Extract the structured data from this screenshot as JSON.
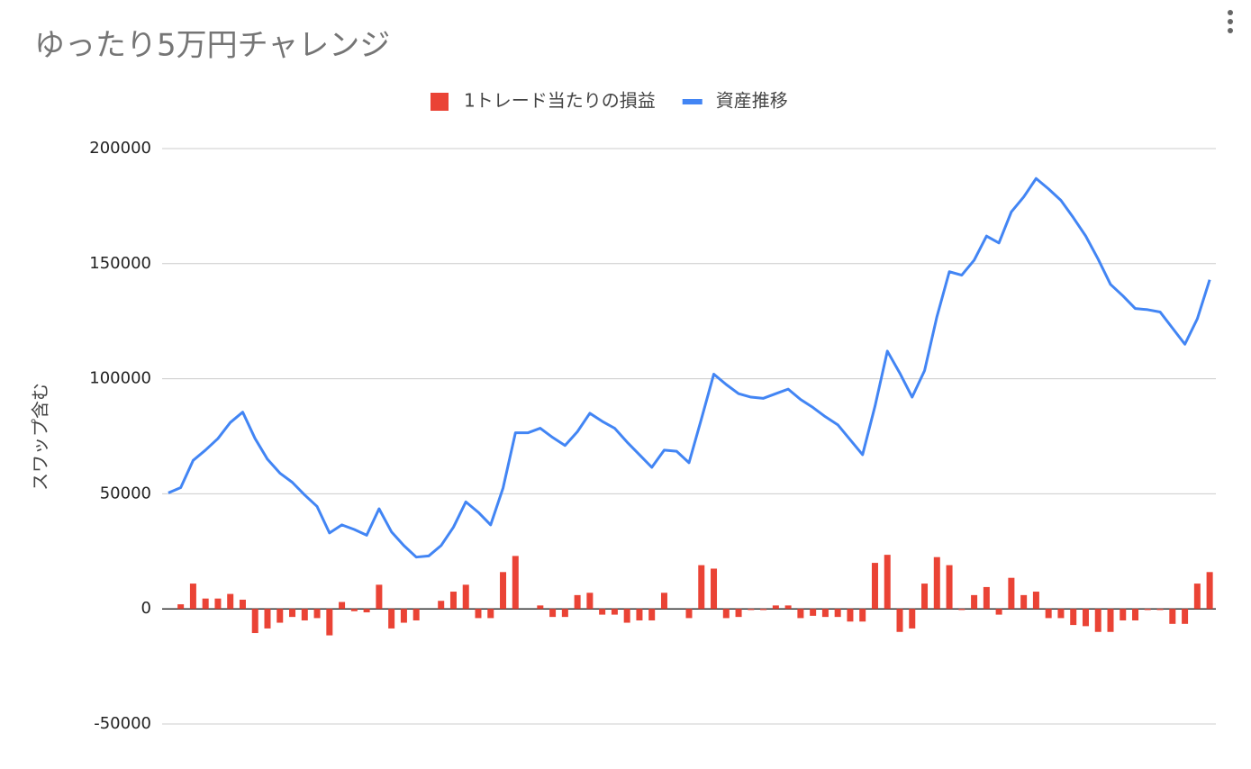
{
  "chart_data": {
    "type": "combo",
    "title": "ゆったり5万円チャレンジ",
    "y_label": "スワップ含む",
    "legend": "top",
    "categories": [
      null,
      null,
      null,
      null,
      null,
      null,
      null,
      null,
      null,
      null,
      null,
      null,
      null,
      null,
      null,
      null,
      null,
      null,
      null,
      null,
      null,
      null,
      null,
      null,
      null,
      null,
      null,
      null,
      null,
      null,
      null,
      null,
      null,
      null,
      null,
      null,
      null,
      null,
      null,
      null,
      null,
      null,
      null,
      null,
      null,
      null,
      null,
      null,
      null,
      null,
      null,
      null,
      null,
      null,
      null,
      null,
      null,
      null,
      null,
      null,
      null,
      null,
      null,
      null,
      null,
      null,
      null,
      null,
      null,
      null,
      null,
      null,
      null,
      null,
      null,
      null,
      null,
      null,
      null,
      null,
      null,
      null,
      null,
      null,
      null
    ],
    "series": [
      {
        "name": "1トレード当たりの損益",
        "kind": "bar",
        "color": "#ea4335",
        "values": [
          null,
          2000,
          11000,
          4500,
          4500,
          6500,
          4000,
          -10500,
          -8500,
          -6000,
          -3500,
          -5000,
          -4000,
          -11500,
          3000,
          -1000,
          -1500,
          10500,
          -8500,
          -6000,
          -5000,
          0,
          3500,
          7500,
          10500,
          -4000,
          -4000,
          16000,
          23000,
          0,
          1500,
          -3500,
          -3500,
          6000,
          7000,
          -2500,
          -2500,
          -6000,
          -5000,
          -5000,
          7000,
          0,
          -4000,
          19000,
          17500,
          -4000,
          -3500,
          -500,
          -500,
          1500,
          1500,
          -4000,
          -3000,
          -3500,
          -3500,
          -5500,
          -5500,
          20000,
          23500,
          -10000,
          -8500,
          11000,
          22500,
          19000,
          -500,
          6000,
          9500,
          -2500,
          13500,
          6000,
          7500,
          -4000,
          -4000,
          -7000,
          -7500,
          -10000,
          -10000,
          -5000,
          -5000,
          -500,
          -500,
          -6500,
          -6500,
          11000,
          16000
        ]
      },
      {
        "name": "資産推移",
        "kind": "line",
        "color": "#4285f4",
        "values": [
          50400,
          52700,
          64500,
          69000,
          74000,
          81000,
          85500,
          74000,
          65000,
          59000,
          55000,
          49500,
          44500,
          33000,
          36500,
          34500,
          32000,
          43500,
          33500,
          27500,
          22500,
          23000,
          27500,
          35500,
          46500,
          42000,
          36500,
          52500,
          76500,
          76500,
          78500,
          74500,
          71000,
          77000,
          85000,
          81500,
          78500,
          72500,
          67000,
          61500,
          69000,
          68500,
          63500,
          82500,
          102000,
          97500,
          93500,
          92000,
          91500,
          93500,
          95500,
          91000,
          87500,
          83500,
          80000,
          73500,
          67000,
          88000,
          112000,
          102500,
          92000,
          103500,
          127000,
          146500,
          145000,
          151500,
          162000,
          159000,
          172500,
          179000,
          187000,
          182500,
          177500,
          170000,
          162000,
          152000,
          141000,
          136000,
          130500,
          130000,
          129000,
          122000,
          115000,
          126000,
          143000
        ]
      }
    ],
    "ylim": [
      -50000,
      200000
    ],
    "yticks": [
      -50000,
      0,
      50000,
      100000,
      150000,
      200000
    ],
    "grid": true
  }
}
